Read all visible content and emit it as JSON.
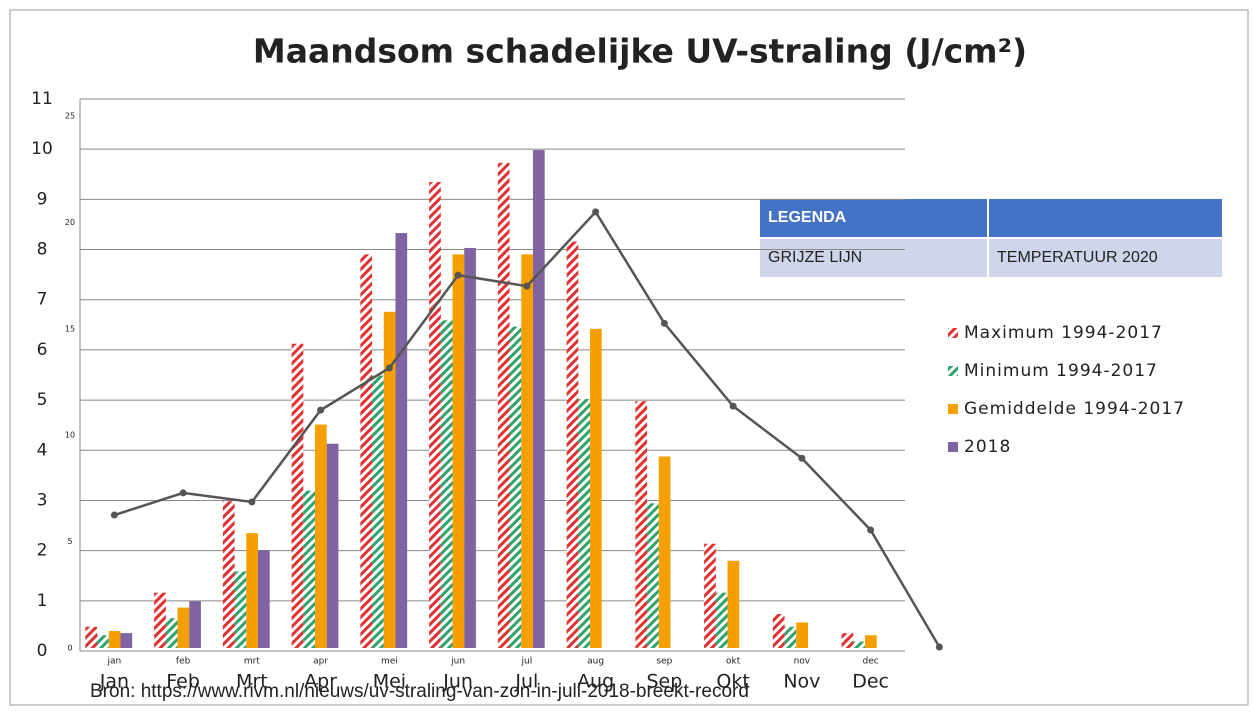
{
  "chart_data": {
    "type": "bar",
    "title": "Maandsom schadelijke UV-straling (J/cm²)",
    "categories": [
      "jan",
      "feb",
      "mrt",
      "apr",
      "mei",
      "jun",
      "jul",
      "aug",
      "sep",
      "okt",
      "nov",
      "dec",
      null
    ],
    "category_labels": [
      "Jan",
      "Feb",
      "Mrt",
      "Apr",
      "Mei",
      "Jun",
      "Jul",
      "Aug",
      "Sep",
      "Okt",
      "Nov",
      "Dec",
      null
    ],
    "ylim": [
      0,
      11
    ],
    "yticks": [
      0,
      1,
      2,
      3,
      4,
      5,
      6,
      7,
      8,
      9,
      10,
      11
    ],
    "y2lim": [
      0,
      25.8
    ],
    "y2ticks": [
      0,
      5,
      10,
      15,
      20,
      25
    ],
    "grid": true,
    "series": [
      {
        "name": "Maximum 1994-2017",
        "color": "#e03030",
        "hatch": true,
        "axis": "y2",
        "values": [
          1.0,
          2.6,
          6.9,
          14.3,
          18.5,
          21.9,
          22.8,
          19.1,
          11.6,
          4.9,
          1.6,
          0.7,
          null
        ]
      },
      {
        "name": "Minimum 1994-2017",
        "color": "#2ea36b",
        "hatch": true,
        "axis": "y2",
        "values": [
          0.6,
          1.4,
          3.6,
          7.4,
          12.8,
          15.4,
          15.1,
          11.7,
          6.8,
          2.6,
          1.0,
          0.3,
          null
        ]
      },
      {
        "name": "Gemiddelde 1994-2017",
        "color": "#f5a000",
        "hatch": false,
        "axis": "y2",
        "values": [
          0.8,
          1.9,
          5.4,
          10.5,
          15.8,
          18.5,
          18.5,
          15.0,
          9.0,
          4.1,
          1.2,
          0.6,
          null
        ]
      },
      {
        "name": "2018",
        "color": "#8064a2",
        "hatch": false,
        "axis": "y2",
        "values": [
          0.7,
          2.2,
          4.6,
          9.6,
          19.5,
          18.8,
          23.4,
          null,
          null,
          null,
          null,
          null,
          null
        ]
      }
    ],
    "line": {
      "color": "#555555",
      "values": [
        2.71,
        3.15,
        2.97,
        4.8,
        5.64,
        7.49,
        7.27,
        8.75,
        6.53,
        4.88,
        3.84,
        2.41,
        0.08
      ]
    },
    "legend_table": {
      "header": [
        "LEGENDA",
        ""
      ],
      "row": [
        "GRIJZE LIJN",
        "TEMPERATUUR 2020"
      ]
    },
    "source": "Bron: https://www.rivm.nl/nieuws/uv-straling-van-zon-in-juli-2018-breekt-record"
  }
}
